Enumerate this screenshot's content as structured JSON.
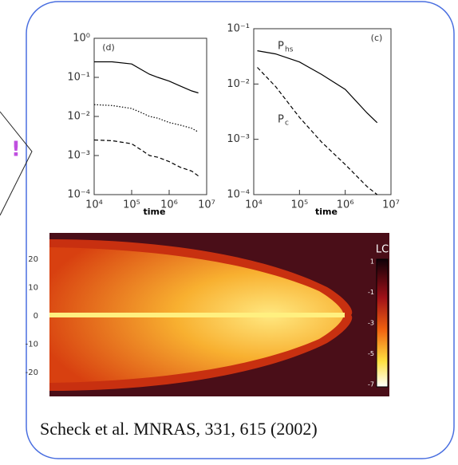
{
  "chart_data": [
    {
      "type": "line",
      "label": "(d)",
      "xlabel": "time",
      "log": true,
      "xlim": [
        10000,
        10000000
      ],
      "ylim": [
        0.0001,
        1
      ],
      "xticks": [
        {
          "value": 10000,
          "label": "10⁴"
        },
        {
          "value": 100000,
          "label": "10⁵"
        },
        {
          "value": 1000000,
          "label": "10⁶"
        },
        {
          "value": 10000000,
          "label": "10⁷"
        }
      ],
      "yticks": [
        {
          "value": 0.0001,
          "label": "10⁻⁴"
        },
        {
          "value": 0.001,
          "label": "10⁻³"
        },
        {
          "value": 0.01,
          "label": "10⁻²"
        },
        {
          "value": 0.1,
          "label": "10⁻¹"
        },
        {
          "value": 1,
          "label": "10⁰"
        }
      ],
      "x": [
        10000,
        30000,
        100000,
        200000,
        300000,
        500000,
        1000000,
        2000000,
        4000000,
        6000000
      ],
      "series": [
        {
          "color": "#000000",
          "linestyle": "solid",
          "values": [
            0.25,
            0.25,
            0.22,
            0.15,
            0.12,
            0.1,
            0.08,
            0.06,
            0.045,
            0.04
          ]
        },
        {
          "color": "#000000",
          "linestyle": "dotted",
          "values": [
            0.02,
            0.019,
            0.016,
            0.012,
            0.01,
            0.009,
            0.007,
            0.006,
            0.005,
            0.004
          ]
        },
        {
          "color": "#000000",
          "linestyle": "dashed",
          "values": [
            0.0025,
            0.0024,
            0.002,
            0.0013,
            0.001,
            0.0009,
            0.0007,
            0.0005,
            0.0004,
            0.0003
          ]
        }
      ]
    },
    {
      "type": "line",
      "label": "(c)",
      "xlabel": "time",
      "log": true,
      "xlim": [
        10000,
        10000000
      ],
      "ylim": [
        0.0001,
        0.1
      ],
      "xticks": [
        {
          "value": 10000,
          "label": "10⁴"
        },
        {
          "value": 100000,
          "label": "10⁵"
        },
        {
          "value": 1000000,
          "label": "10⁶"
        },
        {
          "value": 10000000,
          "label": "10⁷"
        }
      ],
      "yticks": [
        {
          "value": 0.0001,
          "label": "10⁻⁴"
        },
        {
          "value": 0.001,
          "label": "10⁻³"
        },
        {
          "value": 0.01,
          "label": "10⁻²"
        },
        {
          "value": 0.1,
          "label": "10⁻¹"
        }
      ],
      "annotations": [
        {
          "text": "P",
          "sub": "hs"
        },
        {
          "text": "P",
          "sub": "c"
        }
      ],
      "x": [
        12000,
        30000,
        100000,
        300000,
        1000000,
        3000000,
        5000000
      ],
      "series": [
        {
          "color": "#000000",
          "linestyle": "solid",
          "values": [
            0.04,
            0.035,
            0.025,
            0.015,
            0.008,
            0.003,
            0.002
          ]
        },
        {
          "color": "#000000",
          "linestyle": "dashed",
          "values": [
            0.02,
            0.009,
            0.0025,
            0.0009,
            0.00035,
            0.00014,
            0.0001
          ]
        }
      ]
    }
  ],
  "image": {
    "yticks": [
      "20",
      "10",
      "0",
      "-10",
      "-20"
    ],
    "colorbar": {
      "title": "LC",
      "ticks": [
        "1",
        "-1",
        "-3",
        "-5",
        "-7"
      ]
    }
  },
  "caption": "Scheck et al. MNRAS, 331, 615 (2002)"
}
